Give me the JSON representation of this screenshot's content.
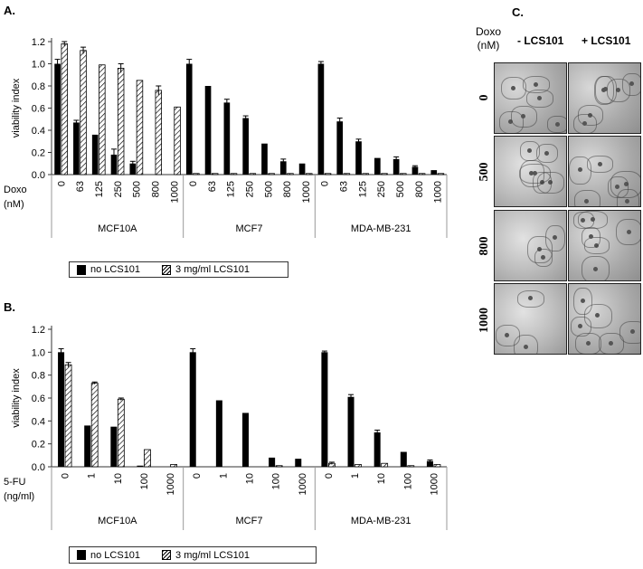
{
  "panels": {
    "a": "A.",
    "b": "B.",
    "c": "C."
  },
  "chart_data": [
    {
      "type": "bar",
      "panel": "A.",
      "ylabel": "viability index",
      "xlabel": "Doxo\n(nM)",
      "x_title_line1": "Doxo",
      "x_title_line2": "(nM)",
      "ylim": [
        0,
        1.2
      ],
      "yticks": [
        "0.0",
        "0.2",
        "0.4",
        "0.6",
        "0.8",
        "1.0",
        "1.2"
      ],
      "groups": [
        {
          "name": "MCF10A",
          "categories": [
            "0",
            "63",
            "125",
            "250",
            "500",
            "800",
            "1000"
          ]
        },
        {
          "name": "MCF7",
          "categories": [
            "0",
            "63",
            "125",
            "250",
            "500",
            "800",
            "1000"
          ]
        },
        {
          "name": "MDA-MB-231",
          "categories": [
            "0",
            "63",
            "125",
            "250",
            "500",
            "800",
            "1000"
          ]
        }
      ],
      "series": [
        {
          "name": "no LCS101",
          "style": "solid",
          "values": [
            [
              1.0,
              0.47,
              0.36,
              0.18,
              0.1,
              0.0,
              0.0
            ],
            [
              1.0,
              0.8,
              0.65,
              0.51,
              0.28,
              0.12,
              0.1
            ],
            [
              1.0,
              0.48,
              0.3,
              0.15,
              0.14,
              0.07,
              0.04
            ]
          ],
          "errors": [
            [
              0.04,
              0.02,
              0.0,
              0.05,
              0.02,
              0.0,
              0.0
            ],
            [
              0.04,
              0.0,
              0.03,
              0.02,
              0.0,
              0.02,
              0.0
            ],
            [
              0.02,
              0.03,
              0.02,
              0.0,
              0.02,
              0.01,
              0.0
            ]
          ]
        },
        {
          "name": "3 mg/ml LCS101",
          "style": "hatch",
          "values": [
            [
              1.18,
              1.12,
              0.99,
              0.96,
              0.85,
              0.76,
              0.61
            ],
            [
              0.01,
              0.01,
              0.01,
              0.01,
              0.01,
              0.01,
              0.01
            ],
            [
              0.01,
              0.01,
              0.01,
              0.01,
              0.01,
              0.01,
              0.01
            ]
          ],
          "errors": [
            [
              0.02,
              0.03,
              0.0,
              0.04,
              0.0,
              0.04,
              0.0
            ],
            [
              0,
              0,
              0,
              0,
              0,
              0,
              0
            ],
            [
              0,
              0,
              0,
              0,
              0,
              0,
              0
            ]
          ]
        }
      ],
      "legend": [
        "no LCS101",
        "3 mg/ml LCS101"
      ]
    },
    {
      "type": "bar",
      "panel": "B.",
      "ylabel": "viability index",
      "x_title_line1": "5-FU",
      "x_title_line2": "(ng/ml)",
      "ylim": [
        0,
        1.2
      ],
      "yticks": [
        "0.0",
        "0.2",
        "0.4",
        "0.6",
        "0.8",
        "1.0",
        "1.2"
      ],
      "groups": [
        {
          "name": "MCF10A",
          "categories": [
            "0",
            "1",
            "10",
            "100",
            "1000"
          ]
        },
        {
          "name": "MCF7",
          "categories": [
            "0",
            "1",
            "10",
            "100",
            "1000"
          ]
        },
        {
          "name": "MDA-MB-231",
          "categories": [
            "0",
            "1",
            "10",
            "100",
            "1000"
          ]
        }
      ],
      "series": [
        {
          "name": "no LCS101",
          "style": "solid",
          "values": [
            [
              1.0,
              0.36,
              0.35,
              0.01,
              0.0
            ],
            [
              1.0,
              0.58,
              0.47,
              0.08,
              0.07
            ],
            [
              1.0,
              0.61,
              0.3,
              0.13,
              0.05
            ]
          ],
          "errors": [
            [
              0.03,
              0.0,
              0.0,
              0.0,
              0.0
            ],
            [
              0.03,
              0.0,
              0.0,
              0.0,
              0.0
            ],
            [
              0.01,
              0.02,
              0.02,
              0.0,
              0.01
            ]
          ]
        },
        {
          "name": "3 mg/ml LCS101",
          "style": "hatch",
          "values": [
            [
              0.89,
              0.73,
              0.59,
              0.15,
              0.02
            ],
            [
              0.0,
              0.0,
              0.0,
              0.01,
              0.0
            ],
            [
              0.03,
              0.02,
              0.03,
              0.01,
              0.02
            ]
          ],
          "errors": [
            [
              0.02,
              0.01,
              0.01,
              0.0,
              0.0
            ],
            [
              0,
              0,
              0,
              0,
              0
            ],
            [
              0.01,
              0.0,
              0.0,
              0.0,
              0.0
            ]
          ]
        }
      ],
      "legend": [
        "no LCS101",
        "3 mg/ml LCS101"
      ]
    }
  ],
  "panel_c": {
    "header_doxo": "Doxo",
    "header_unit": "(nM)",
    "col_minus": "- LCS101",
    "col_plus": "+ LCS101",
    "rows": [
      "0",
      "500",
      "800",
      "1000"
    ]
  }
}
